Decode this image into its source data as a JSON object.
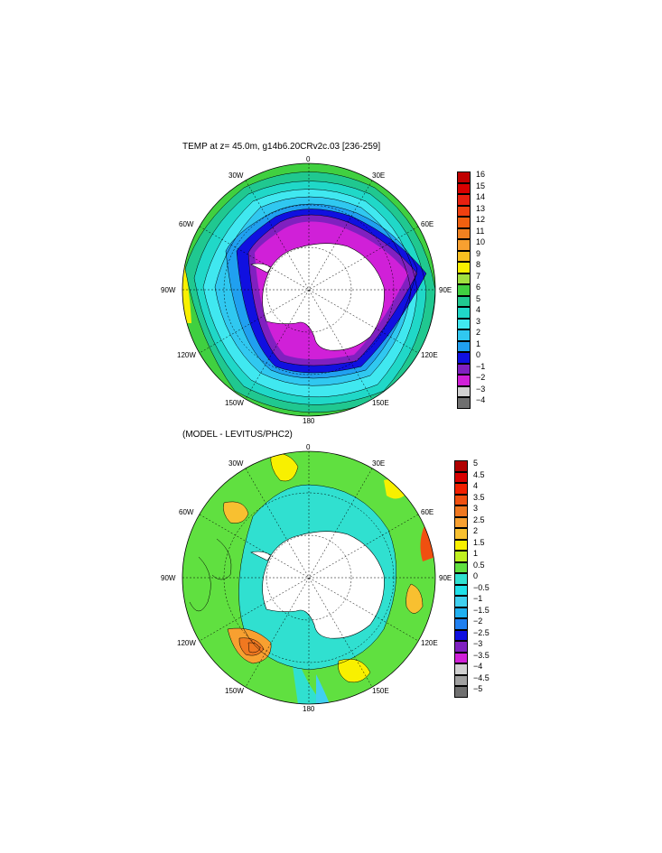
{
  "panels": [
    {
      "title": "TEMP at z=  45.0m, g14b6.20CRv2c.03 [236-259]",
      "longitude_labels": [
        "0",
        "30E",
        "60E",
        "90E",
        "120E",
        "150E",
        "180",
        "150W",
        "120W",
        "90W",
        "60W",
        "30W"
      ],
      "colorbar": {
        "ticks": [
          "16",
          "15",
          "14",
          "13",
          "12",
          "11",
          "10",
          "9",
          "8",
          "7",
          "6",
          "5",
          "4",
          "3",
          "2",
          "1",
          "0",
          "−1",
          "−2",
          "−3",
          "−4"
        ],
        "colors": [
          "#c00000",
          "#d80000",
          "#e82010",
          "#f04010",
          "#f06010",
          "#f08020",
          "#f8a030",
          "#f8c020",
          "#f8f000",
          "#a0e040",
          "#40d040",
          "#20c890",
          "#20d8c8",
          "#40e8f0",
          "#30c8f0",
          "#20a0f0",
          "#1010e0",
          "#8020c0",
          "#d020d8",
          "#d0d0d0",
          "#707070"
        ]
      }
    },
    {
      "title": "(MODEL - LEVITUS/PHC2)",
      "longitude_labels": [
        "0",
        "30E",
        "60E",
        "90E",
        "120E",
        "150E",
        "180",
        "150W",
        "120W",
        "90W",
        "60W",
        "30W"
      ],
      "colorbar": {
        "ticks": [
          "5",
          "4.5",
          "4",
          "3.5",
          "3",
          "2.5",
          "2",
          "1.5",
          "1",
          "0.5",
          "0",
          "−0.5",
          "−1",
          "−1.5",
          "−2",
          "−2.5",
          "−3",
          "−3.5",
          "−4",
          "−4.5",
          "−5"
        ],
        "colors": [
          "#b00000",
          "#d80000",
          "#f02000",
          "#f05010",
          "#f07820",
          "#f8a030",
          "#f8c030",
          "#f8f000",
          "#c0f020",
          "#60e040",
          "#30e0d0",
          "#20e0e8",
          "#40d0f0",
          "#20b0f0",
          "#2080f0",
          "#1010e0",
          "#8020c0",
          "#d020d8",
          "#d0d0d0",
          "#a0a0a0",
          "#707070"
        ]
      }
    }
  ]
}
